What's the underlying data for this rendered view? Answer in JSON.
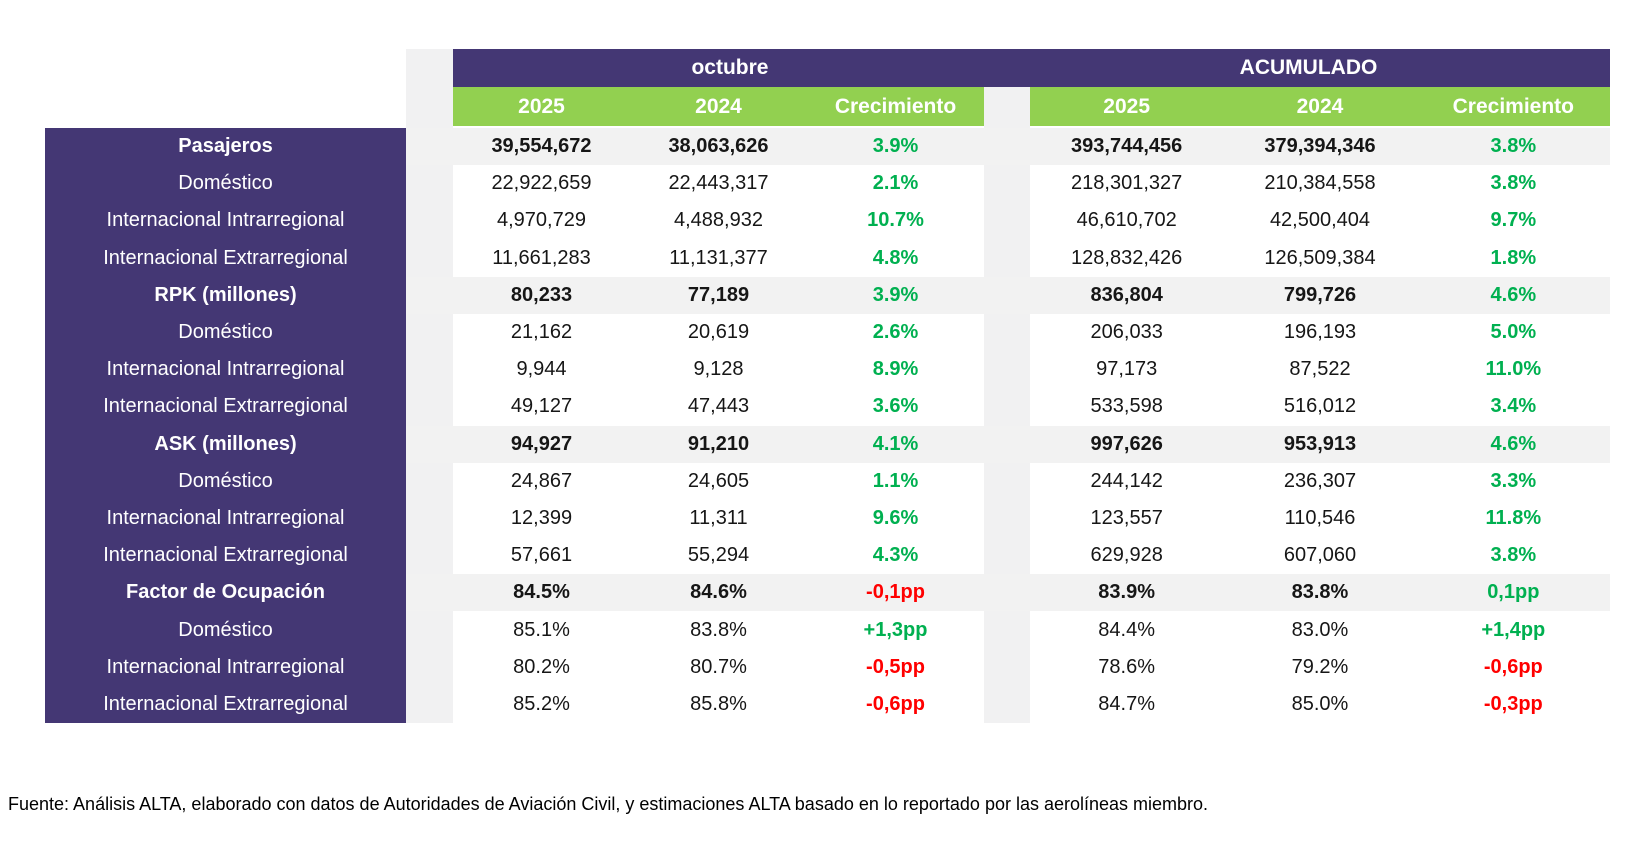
{
  "colors": {
    "purple": "#443774",
    "green_header": "#92d050",
    "growth_positive": "#00b050",
    "growth_negative": "#ff0000",
    "band_gray": "#f2f2f2"
  },
  "header": {
    "octubre": "octubre",
    "acumulado": "ACUMULADO",
    "columns": [
      "2025",
      "2024",
      "Crecimiento"
    ]
  },
  "rows": [
    {
      "label": "Pasajeros",
      "emphasis": true,
      "octubre": {
        "y2025": "39,554,672",
        "y2024": "38,063,626",
        "growth": "3.9%",
        "trend": "up"
      },
      "acumulado": {
        "y2025": "393,744,456",
        "y2024": "379,394,346",
        "growth": "3.8%",
        "trend": "up"
      }
    },
    {
      "label": "Doméstico",
      "emphasis": false,
      "octubre": {
        "y2025": "22,922,659",
        "y2024": "22,443,317",
        "growth": "2.1%",
        "trend": "up"
      },
      "acumulado": {
        "y2025": "218,301,327",
        "y2024": "210,384,558",
        "growth": "3.8%",
        "trend": "up"
      }
    },
    {
      "label": "Internacional Intrarregional",
      "emphasis": false,
      "octubre": {
        "y2025": "4,970,729",
        "y2024": "4,488,932",
        "growth": "10.7%",
        "trend": "up"
      },
      "acumulado": {
        "y2025": "46,610,702",
        "y2024": "42,500,404",
        "growth": "9.7%",
        "trend": "up"
      }
    },
    {
      "label": "Internacional Extrarregional",
      "emphasis": false,
      "octubre": {
        "y2025": "11,661,283",
        "y2024": "11,131,377",
        "growth": "4.8%",
        "trend": "up"
      },
      "acumulado": {
        "y2025": "128,832,426",
        "y2024": "126,509,384",
        "growth": "1.8%",
        "trend": "up"
      }
    },
    {
      "label": "RPK (millones)",
      "emphasis": true,
      "octubre": {
        "y2025": "80,233",
        "y2024": "77,189",
        "growth": "3.9%",
        "trend": "up"
      },
      "acumulado": {
        "y2025": "836,804",
        "y2024": "799,726",
        "growth": "4.6%",
        "trend": "up"
      }
    },
    {
      "label": "Doméstico",
      "emphasis": false,
      "octubre": {
        "y2025": "21,162",
        "y2024": "20,619",
        "growth": "2.6%",
        "trend": "up"
      },
      "acumulado": {
        "y2025": "206,033",
        "y2024": "196,193",
        "growth": "5.0%",
        "trend": "up"
      }
    },
    {
      "label": "Internacional Intrarregional",
      "emphasis": false,
      "octubre": {
        "y2025": "9,944",
        "y2024": "9,128",
        "growth": "8.9%",
        "trend": "up"
      },
      "acumulado": {
        "y2025": "97,173",
        "y2024": "87,522",
        "growth": "11.0%",
        "trend": "up"
      }
    },
    {
      "label": "Internacional Extrarregional",
      "emphasis": false,
      "octubre": {
        "y2025": "49,127",
        "y2024": "47,443",
        "growth": "3.6%",
        "trend": "up"
      },
      "acumulado": {
        "y2025": "533,598",
        "y2024": "516,012",
        "growth": "3.4%",
        "trend": "up"
      }
    },
    {
      "label": "ASK (millones)",
      "emphasis": true,
      "octubre": {
        "y2025": "94,927",
        "y2024": "91,210",
        "growth": "4.1%",
        "trend": "up"
      },
      "acumulado": {
        "y2025": "997,626",
        "y2024": "953,913",
        "growth": "4.6%",
        "trend": "up"
      }
    },
    {
      "label": "Doméstico",
      "emphasis": false,
      "octubre": {
        "y2025": "24,867",
        "y2024": "24,605",
        "growth": "1.1%",
        "trend": "up"
      },
      "acumulado": {
        "y2025": "244,142",
        "y2024": "236,307",
        "growth": "3.3%",
        "trend": "up"
      }
    },
    {
      "label": "Internacional Intrarregional",
      "emphasis": false,
      "octubre": {
        "y2025": "12,399",
        "y2024": "11,311",
        "growth": "9.6%",
        "trend": "up"
      },
      "acumulado": {
        "y2025": "123,557",
        "y2024": "110,546",
        "growth": "11.8%",
        "trend": "up"
      }
    },
    {
      "label": "Internacional Extrarregional",
      "emphasis": false,
      "octubre": {
        "y2025": "57,661",
        "y2024": "55,294",
        "growth": "4.3%",
        "trend": "up"
      },
      "acumulado": {
        "y2025": "629,928",
        "y2024": "607,060",
        "growth": "3.8%",
        "trend": "up"
      }
    },
    {
      "label": "Factor de Ocupación",
      "emphasis": true,
      "octubre": {
        "y2025": "84.5%",
        "y2024": "84.6%",
        "growth": "-0,1pp",
        "trend": "down"
      },
      "acumulado": {
        "y2025": "83.9%",
        "y2024": "83.8%",
        "growth": "0,1pp",
        "trend": "up"
      }
    },
    {
      "label": "Doméstico",
      "emphasis": false,
      "octubre": {
        "y2025": "85.1%",
        "y2024": "83.8%",
        "growth": "+1,3pp",
        "trend": "up"
      },
      "acumulado": {
        "y2025": "84.4%",
        "y2024": "83.0%",
        "growth": "+1,4pp",
        "trend": "up"
      }
    },
    {
      "label": "Internacional Intrarregional",
      "emphasis": false,
      "octubre": {
        "y2025": "80.2%",
        "y2024": "80.7%",
        "growth": "-0,5pp",
        "trend": "down"
      },
      "acumulado": {
        "y2025": "78.6%",
        "y2024": "79.2%",
        "growth": "-0,6pp",
        "trend": "down"
      }
    },
    {
      "label": "Internacional Extrarregional",
      "emphasis": false,
      "octubre": {
        "y2025": "85.2%",
        "y2024": "85.8%",
        "growth": "-0,6pp",
        "trend": "down"
      },
      "acumulado": {
        "y2025": "84.7%",
        "y2024": "85.0%",
        "growth": "-0,3pp",
        "trend": "down"
      }
    }
  ],
  "footer": {
    "source": "Fuente: Análisis ALTA, elaborado con datos de Autoridades de Aviación Civil,  y estimaciones ALTA basado en lo reportado por las aerolíneas miembro."
  }
}
